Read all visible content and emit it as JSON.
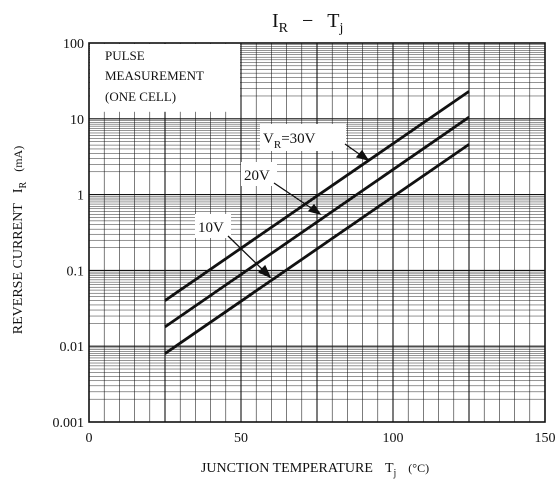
{
  "chart_data": {
    "type": "line",
    "title_main": "I",
    "title_main_sub": "R",
    "title_sep": "−",
    "title_right": "T",
    "title_right_sub": "j",
    "xlabel_main": "JUNCTION TEMPERATURE",
    "xlabel_symbol": "T",
    "xlabel_symbol_sub": "j",
    "xlabel_unit": "(°C)",
    "ylabel_main": "REVERSE CURRENT",
    "ylabel_symbol": "I",
    "ylabel_symbol_sub": "R",
    "ylabel_unit": "(mA)",
    "xlim": [
      0,
      150
    ],
    "ylim": [
      0.001,
      100
    ],
    "y_scale": "log",
    "x_ticks": [
      "0",
      "50",
      "100",
      "150"
    ],
    "y_ticks": [
      "0.001",
      "0.01",
      "0.1",
      "1",
      "10",
      "100"
    ],
    "grid": true,
    "note_lines": [
      "PULSE",
      "MEASUREMENT",
      "(ONE CELL)"
    ],
    "series": [
      {
        "name": "VR=30V",
        "label_main": "V",
        "label_sub": "R",
        "label_rest": "=30V",
        "x": [
          25,
          125
        ],
        "y": [
          0.04,
          23
        ]
      },
      {
        "name": "20V",
        "label_main": "20V",
        "label_sub": "",
        "label_rest": "",
        "x": [
          25,
          125
        ],
        "y": [
          0.018,
          10.5
        ]
      },
      {
        "name": "10V",
        "label_main": "10V",
        "label_sub": "",
        "label_rest": "",
        "x": [
          25,
          125
        ],
        "y": [
          0.008,
          4.6
        ]
      }
    ]
  }
}
